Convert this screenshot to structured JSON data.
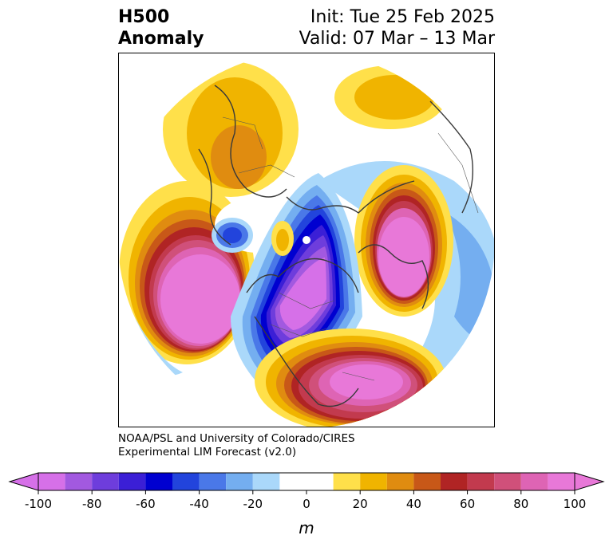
{
  "title": {
    "left_line1": "H500",
    "left_line2": "Anomaly",
    "right_line1": "Init: Tue 25 Feb 2025",
    "right_line2": "Valid: 07 Mar – 13 Mar"
  },
  "credits": {
    "line1": "NOAA/PSL and University of Colorado/CIRES",
    "line2": "Experimental LIM Forecast (v2.0)"
  },
  "colorbar": {
    "unit": "m",
    "ticks": [
      "-100",
      "-80",
      "-60",
      "-40",
      "-20",
      "0",
      "20",
      "40",
      "60",
      "80",
      "100"
    ],
    "bins": [
      {
        "value": -95,
        "color": "#d670e8"
      },
      {
        "value": -85,
        "color": "#a259e0"
      },
      {
        "value": -75,
        "color": "#6e3ddc"
      },
      {
        "value": -65,
        "color": "#3b1fd6"
      },
      {
        "value": -55,
        "color": "#0000d0"
      },
      {
        "value": -45,
        "color": "#2244dc"
      },
      {
        "value": -35,
        "color": "#4a78e8"
      },
      {
        "value": -25,
        "color": "#74aef0"
      },
      {
        "value": -15,
        "color": "#aad8fa"
      },
      {
        "value": 0,
        "color": "#ffffff"
      },
      {
        "value": 15,
        "color": "#ffe04a"
      },
      {
        "value": 25,
        "color": "#f0b400"
      },
      {
        "value": 35,
        "color": "#e08c10"
      },
      {
        "value": 45,
        "color": "#c85818"
      },
      {
        "value": 55,
        "color": "#b02424"
      },
      {
        "value": 65,
        "color": "#c23a4e"
      },
      {
        "value": 75,
        "color": "#d0507a"
      },
      {
        "value": 85,
        "color": "#de64b4"
      },
      {
        "value": 95,
        "color": "#e878d8"
      }
    ],
    "extend_low_color": "#d670e8",
    "extend_high_color": "#e878d8"
  },
  "map": {
    "projection": "polar-stereographic",
    "field": "500 hPa geopotential height anomaly",
    "features": [
      {
        "name": "north-pacific-ridge",
        "sign": "positive",
        "peak": 100
      },
      {
        "name": "north-america-trough",
        "sign": "negative",
        "peak": -100
      },
      {
        "name": "us-east-ridge",
        "sign": "positive",
        "peak": 90
      },
      {
        "name": "siberia-ridge",
        "sign": "positive",
        "peak": 100
      },
      {
        "name": "europe-ridge",
        "sign": "positive",
        "peak": 40
      },
      {
        "name": "asia-trough",
        "sign": "negative",
        "peak": -40
      }
    ]
  }
}
